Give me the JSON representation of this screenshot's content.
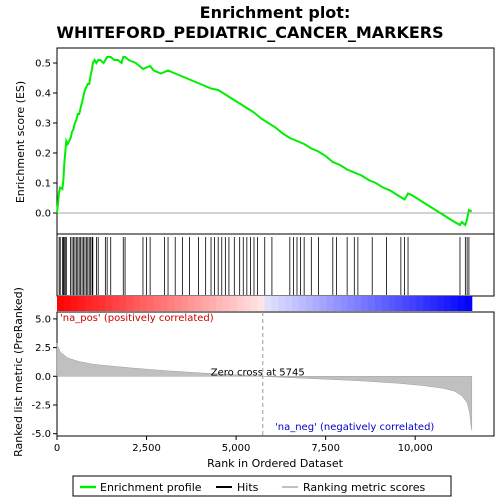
{
  "chart_data": {
    "type": "line",
    "title_line1": "Enrichment plot:",
    "title_line2": "WHITEFORD_PEDIATRIC_CANCER_MARKERS",
    "colors": {
      "es_line": "#00ee00",
      "hits": "#000000",
      "metric_fill": "#c0c0c0",
      "pos": "#ff0000",
      "neg": "#0000ff"
    },
    "es_panel": {
      "ylabel": "Enrichment score (ES)",
      "ylim": [
        -0.07,
        0.55
      ],
      "yticks": [
        0.0,
        0.1,
        0.2,
        0.3,
        0.4,
        0.5
      ],
      "ytick_labels": [
        "0.0",
        "0.1",
        "0.2",
        "0.3",
        "0.4",
        "0.5"
      ],
      "points": [
        [
          0,
          0.0
        ],
        [
          60,
          0.07
        ],
        [
          90,
          0.085
        ],
        [
          150,
          0.08
        ],
        [
          180,
          0.11
        ],
        [
          200,
          0.16
        ],
        [
          230,
          0.2
        ],
        [
          260,
          0.24
        ],
        [
          300,
          0.23
        ],
        [
          380,
          0.25
        ],
        [
          420,
          0.27
        ],
        [
          460,
          0.28
        ],
        [
          500,
          0.3
        ],
        [
          540,
          0.31
        ],
        [
          580,
          0.33
        ],
        [
          620,
          0.33
        ],
        [
          660,
          0.35
        ],
        [
          700,
          0.37
        ],
        [
          740,
          0.39
        ],
        [
          780,
          0.41
        ],
        [
          820,
          0.42
        ],
        [
          860,
          0.43
        ],
        [
          900,
          0.43
        ],
        [
          940,
          0.46
        ],
        [
          980,
          0.48
        ],
        [
          1000,
          0.5
        ],
        [
          1050,
          0.51
        ],
        [
          1100,
          0.5
        ],
        [
          1150,
          0.51
        ],
        [
          1200,
          0.51
        ],
        [
          1300,
          0.5
        ],
        [
          1350,
          0.51
        ],
        [
          1400,
          0.52
        ],
        [
          1500,
          0.52
        ],
        [
          1600,
          0.51
        ],
        [
          1700,
          0.51
        ],
        [
          1800,
          0.5
        ],
        [
          1850,
          0.52
        ],
        [
          1900,
          0.52
        ],
        [
          2000,
          0.51
        ],
        [
          2200,
          0.5
        ],
        [
          2400,
          0.48
        ],
        [
          2500,
          0.485
        ],
        [
          2600,
          0.49
        ],
        [
          2700,
          0.475
        ],
        [
          2900,
          0.465
        ],
        [
          3000,
          0.47
        ],
        [
          3100,
          0.475
        ],
        [
          3300,
          0.465
        ],
        [
          3500,
          0.455
        ],
        [
          3700,
          0.445
        ],
        [
          3900,
          0.435
        ],
        [
          4100,
          0.425
        ],
        [
          4300,
          0.415
        ],
        [
          4500,
          0.41
        ],
        [
          4700,
          0.395
        ],
        [
          4900,
          0.38
        ],
        [
          5100,
          0.365
        ],
        [
          5300,
          0.35
        ],
        [
          5500,
          0.335
        ],
        [
          5700,
          0.315
        ],
        [
          5900,
          0.3
        ],
        [
          6100,
          0.285
        ],
        [
          6300,
          0.265
        ],
        [
          6500,
          0.25
        ],
        [
          6700,
          0.24
        ],
        [
          6900,
          0.23
        ],
        [
          7100,
          0.215
        ],
        [
          7300,
          0.205
        ],
        [
          7500,
          0.19
        ],
        [
          7700,
          0.17
        ],
        [
          7900,
          0.16
        ],
        [
          8100,
          0.145
        ],
        [
          8300,
          0.135
        ],
        [
          8500,
          0.125
        ],
        [
          8700,
          0.11
        ],
        [
          8900,
          0.1
        ],
        [
          9100,
          0.085
        ],
        [
          9300,
          0.075
        ],
        [
          9500,
          0.06
        ],
        [
          9700,
          0.045
        ],
        [
          9800,
          0.065
        ],
        [
          9900,
          0.06
        ],
        [
          10100,
          0.045
        ],
        [
          10300,
          0.03
        ],
        [
          10500,
          0.015
        ],
        [
          10700,
          0.0
        ],
        [
          10900,
          -0.015
        ],
        [
          11100,
          -0.03
        ],
        [
          11250,
          -0.04
        ],
        [
          11300,
          -0.03
        ],
        [
          11400,
          -0.04
        ],
        [
          11450,
          -0.02
        ],
        [
          11500,
          0.01
        ],
        [
          11580,
          0.005
        ]
      ]
    },
    "hits_x": [
      60,
      90,
      150,
      180,
      200,
      230,
      260,
      380,
      420,
      460,
      500,
      540,
      580,
      620,
      660,
      700,
      740,
      780,
      820,
      860,
      900,
      940,
      980,
      1000,
      1100,
      1150,
      1350,
      1400,
      1500,
      1850,
      1900,
      2400,
      2500,
      2600,
      3000,
      3100,
      3300,
      3500,
      3700,
      3950,
      4150,
      4300,
      4400,
      4500,
      4600,
      4700,
      4800,
      4950,
      5100,
      5200,
      5300,
      5400,
      5500,
      5600,
      5800,
      6000,
      6500,
      6600,
      6700,
      6800,
      6900,
      7100,
      7300,
      7700,
      7800,
      8100,
      8300,
      8400,
      8800,
      9200,
      9600,
      9700,
      9800,
      11250,
      11400,
      11450,
      11500
    ],
    "metric_panel": {
      "ylabel": "Ranked list metric (PreRanked)",
      "ylim": [
        -5.2,
        5.6
      ],
      "yticks": [
        -5.0,
        -2.5,
        0.0,
        2.5,
        5.0
      ],
      "ytick_labels": [
        "-5.0",
        "-2.5",
        "0.0",
        "2.5",
        "5.0"
      ],
      "profile": [
        [
          0,
          2.9
        ],
        [
          20,
          2.6
        ],
        [
          100,
          2.1
        ],
        [
          300,
          1.6
        ],
        [
          600,
          1.3
        ],
        [
          1000,
          1.05
        ],
        [
          2000,
          0.75
        ],
        [
          3000,
          0.5
        ],
        [
          4000,
          0.3
        ],
        [
          5000,
          0.12
        ],
        [
          5745,
          0.0
        ],
        [
          6500,
          -0.12
        ],
        [
          7500,
          -0.25
        ],
        [
          8500,
          -0.4
        ],
        [
          9500,
          -0.6
        ],
        [
          10200,
          -0.8
        ],
        [
          10800,
          -1.05
        ],
        [
          11100,
          -1.3
        ],
        [
          11300,
          -1.7
        ],
        [
          11450,
          -2.3
        ],
        [
          11520,
          -3.2
        ],
        [
          11560,
          -4.3
        ],
        [
          11580,
          -4.7
        ]
      ],
      "zero_cross_label": "Zero cross at 5745",
      "zero_cross_x": 5745,
      "pos_label": "'na_pos' (positively correlated)",
      "neg_label": "'na_neg' (negatively correlated)"
    },
    "x_axis": {
      "xlabel": "Rank in Ordered Dataset",
      "xlim": [
        0,
        12200
      ],
      "xticks": [
        0,
        2500,
        5000,
        7500,
        10000
      ],
      "xtick_labels": [
        "0",
        "2,500",
        "5,000",
        "7,500",
        "10,000"
      ],
      "n_genes": 11580
    },
    "legend": {
      "items": [
        "Enrichment profile",
        "Hits",
        "Ranking metric scores"
      ],
      "placement": "bottom"
    }
  }
}
